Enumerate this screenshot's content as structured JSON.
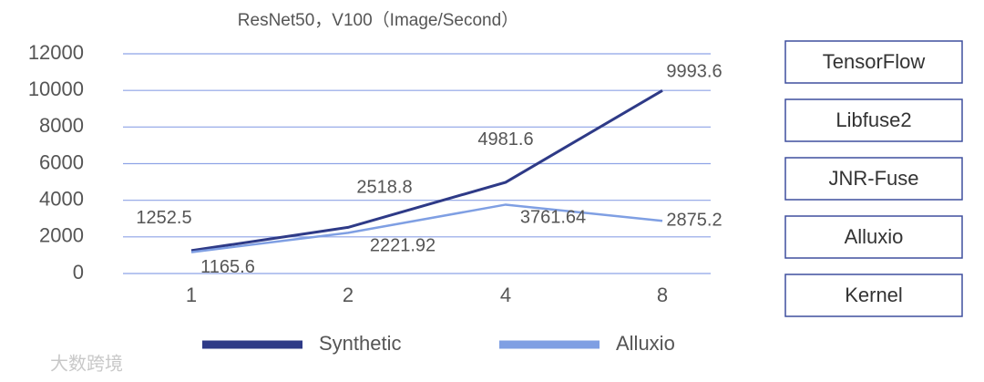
{
  "chart_data": {
    "type": "line",
    "title": "ResNet50，V100（Image/Second）",
    "categories": [
      "1",
      "2",
      "4",
      "8"
    ],
    "series": [
      {
        "name": "Synthetic",
        "color": "#2e3a87",
        "values": [
          1252.5,
          2518.8,
          4981.6,
          9993.6
        ]
      },
      {
        "name": "Alluxio",
        "color": "#7f9fe3",
        "values": [
          1165.6,
          2221.92,
          3761.64,
          2875.2
        ]
      }
    ],
    "ylim": [
      0,
      12000
    ],
    "yticks": [
      0,
      2000,
      4000,
      6000,
      8000,
      10000,
      12000
    ],
    "grid": true,
    "legend": "bottom"
  },
  "stack_layers": [
    "TensorFlow",
    "Libfuse2",
    "JNR-Fuse",
    "Alluxio",
    "Kernel"
  ],
  "watermark": "大数跨境"
}
